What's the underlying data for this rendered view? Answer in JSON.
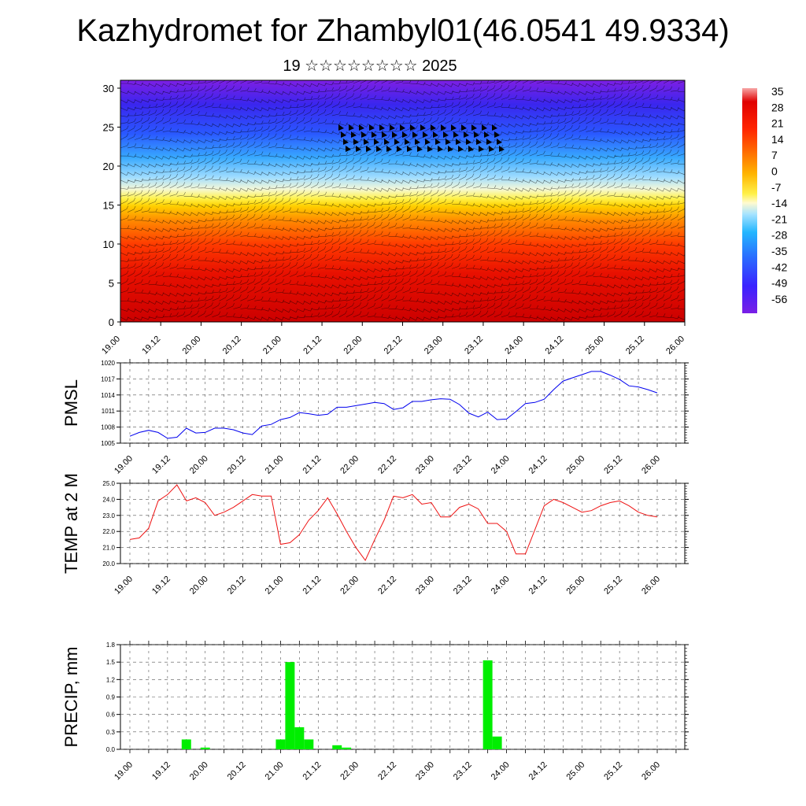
{
  "header": {
    "title": "Kazhydromet for Zhambyl01(46.0541 49.9334)",
    "subtitle": "19 ☆☆☆☆☆☆☆☆ 2025"
  },
  "time_ticks": [
    "19.00",
    "19.12",
    "20.00",
    "20.12",
    "21.00",
    "21.12",
    "22.00",
    "22.12",
    "23.00",
    "23.12",
    "24.00",
    "24.12",
    "25.00",
    "25.12",
    "26.00"
  ],
  "colors": {
    "pmsl_line": "#0000ee",
    "temp_line": "#ee1111",
    "precip_bar": "#00ee00",
    "grid": "#555555"
  },
  "chart_data": [
    {
      "type": "heatmap",
      "title": "",
      "ylabel": "",
      "ylim": [
        0,
        30
      ],
      "y_ticks": [
        "0",
        "5",
        "10",
        "15",
        "20",
        "25",
        "30"
      ],
      "xlim": [
        "19.00",
        "26.00"
      ],
      "colorbar": {
        "labels": [
          "35",
          "28",
          "21",
          "14",
          "7",
          "0",
          "-7",
          "-14",
          "-21",
          "-28",
          "-35",
          "-42",
          "-49",
          "-56"
        ],
        "range": [
          -60,
          40
        ],
        "colormap": [
          "#7a1fe6",
          "#3a22ff",
          "#2a6dff",
          "#23b6ff",
          "#a6e3ff",
          "#fffad0",
          "#fff14a",
          "#ffb400",
          "#ff6a00",
          "#ff2400",
          "#e00000",
          "#f7a6a6"
        ]
      },
      "overlay": "wind barbs"
    },
    {
      "type": "line",
      "ylabel": "PMSL",
      "ylim": [
        1005,
        1020
      ],
      "y_ticks": [
        "1020",
        "1017",
        "1014",
        "1011",
        "1008",
        "1005"
      ],
      "x": [
        0,
        3,
        6,
        9,
        12,
        15,
        18,
        21,
        24,
        27,
        30,
        33,
        36,
        39,
        42,
        45,
        48,
        51,
        54,
        57,
        60,
        63,
        66,
        69,
        72,
        75,
        78,
        81,
        84,
        87,
        90,
        93,
        96,
        99,
        102,
        105,
        108,
        111,
        114,
        117,
        120,
        123,
        126,
        129,
        132,
        135,
        138,
        141,
        144,
        147,
        150,
        153,
        156,
        159,
        162,
        165,
        168
      ],
      "values": [
        1006.3,
        1007.0,
        1007.4,
        1007.0,
        1005.9,
        1006.1,
        1007.8,
        1006.9,
        1007.0,
        1007.8,
        1007.8,
        1007.5,
        1006.9,
        1006.6,
        1008.2,
        1008.5,
        1009.4,
        1009.8,
        1010.7,
        1010.5,
        1010.2,
        1010.4,
        1011.7,
        1011.7,
        1012.0,
        1012.3,
        1012.6,
        1012.4,
        1011.3,
        1011.6,
        1012.8,
        1012.8,
        1013.1,
        1013.3,
        1013.2,
        1012.2,
        1010.6,
        1009.9,
        1010.8,
        1009.4,
        1009.5,
        1010.9,
        1012.4,
        1012.6,
        1013.2,
        1015.0,
        1016.6,
        1017.2,
        1017.8,
        1018.4,
        1018.4,
        1017.7,
        1016.9,
        1015.7,
        1015.5,
        1015.0,
        1014.4
      ]
    },
    {
      "type": "line",
      "ylabel": "TEMP at 2 M",
      "ylim": [
        20.0,
        25.0
      ],
      "y_ticks": [
        "25.0",
        "24.0",
        "23.0",
        "22.0",
        "21.0",
        "20.0"
      ],
      "x": [
        0,
        3,
        6,
        9,
        12,
        15,
        18,
        21,
        24,
        27,
        30,
        33,
        36,
        39,
        42,
        45,
        48,
        51,
        54,
        57,
        60,
        63,
        66,
        69,
        72,
        75,
        78,
        81,
        84,
        87,
        90,
        93,
        96,
        99,
        102,
        105,
        108,
        111,
        114,
        117,
        120,
        123,
        126,
        129,
        132,
        135,
        138,
        141,
        144,
        147,
        150,
        153,
        156,
        159,
        162,
        165,
        168
      ],
      "values": [
        21.5,
        21.6,
        22.2,
        23.9,
        24.3,
        24.9,
        23.9,
        24.1,
        23.8,
        23.0,
        23.2,
        23.5,
        23.9,
        24.3,
        24.2,
        24.2,
        21.2,
        21.3,
        21.8,
        22.7,
        23.3,
        24.1,
        23.1,
        22.0,
        21.0,
        20.2,
        21.5,
        22.7,
        24.2,
        24.1,
        24.3,
        23.7,
        23.8,
        22.9,
        22.9,
        23.5,
        23.7,
        23.4,
        22.5,
        22.5,
        22.0,
        20.6,
        20.6,
        22.1,
        23.6,
        24.0,
        23.8,
        23.5,
        23.2,
        23.3,
        23.6,
        23.8,
        23.9,
        23.6,
        23.2,
        23.0,
        22.9
      ]
    },
    {
      "type": "bar",
      "ylabel": "PRECIP, mm",
      "ylim": [
        0,
        1.8
      ],
      "y_ticks": [
        "1.8",
        "1.5",
        "1.2",
        "0.9",
        "0.6",
        "0.3",
        "0.0"
      ],
      "x": [
        18,
        24,
        48,
        51,
        54,
        57,
        66,
        69,
        114,
        117
      ],
      "values": [
        0.17,
        0.03,
        0.17,
        1.5,
        0.38,
        0.17,
        0.07,
        0.03,
        1.53,
        0.22
      ]
    }
  ]
}
